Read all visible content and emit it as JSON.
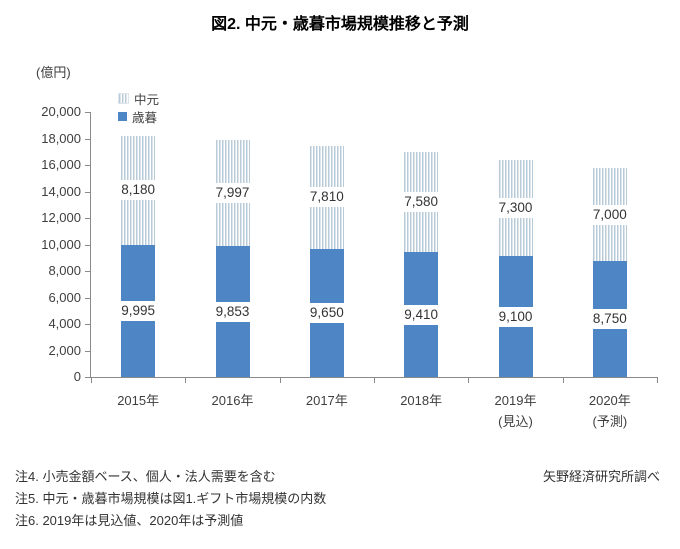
{
  "title": "図2. 中元・歳暮市場規模推移と予測",
  "unit_label": "(億円)",
  "colors": {
    "bar_saibo": "#4e86c5",
    "bar_chugen_stripe": "#b8cbd9",
    "axis_line": "#8a8a8a",
    "text": "#3f3f3f"
  },
  "chart_data": {
    "type": "bar",
    "stacked": true,
    "title": "図2. 中元・歳暮市場規模推移と予測",
    "ylabel": "(億円)",
    "ylim": [
      0,
      20000
    ],
    "ytick_step": 2000,
    "yticks": [
      "0",
      "2,000",
      "4,000",
      "6,000",
      "8,000",
      "10,000",
      "12,000",
      "14,000",
      "16,000",
      "18,000",
      "20,000"
    ],
    "grid": false,
    "legend_position": "top-left-inside",
    "categories": [
      {
        "label": "2015年",
        "sublabel": ""
      },
      {
        "label": "2016年",
        "sublabel": ""
      },
      {
        "label": "2017年",
        "sublabel": ""
      },
      {
        "label": "2018年",
        "sublabel": ""
      },
      {
        "label": "2019年",
        "sublabel": "(見込)"
      },
      {
        "label": "2020年",
        "sublabel": "(予測)"
      }
    ],
    "series": [
      {
        "name": "歳暮",
        "style": "solid",
        "color": "#4e86c5",
        "values": [
          9995,
          9853,
          9650,
          9410,
          9100,
          8750
        ]
      },
      {
        "name": "中元",
        "style": "striped",
        "color": "#b8cbd9",
        "values": [
          8180,
          7997,
          7810,
          7580,
          7300,
          7000
        ]
      }
    ]
  },
  "notes": [
    "注4. 小売金額ベース、個人・法人需要を含む",
    "注5. 中元・歳暮市場規模は図1.ギフト市場規模の内数",
    "注6. 2019年は見込値、2020年は予測値"
  ],
  "source": "矢野経済研究所調べ"
}
